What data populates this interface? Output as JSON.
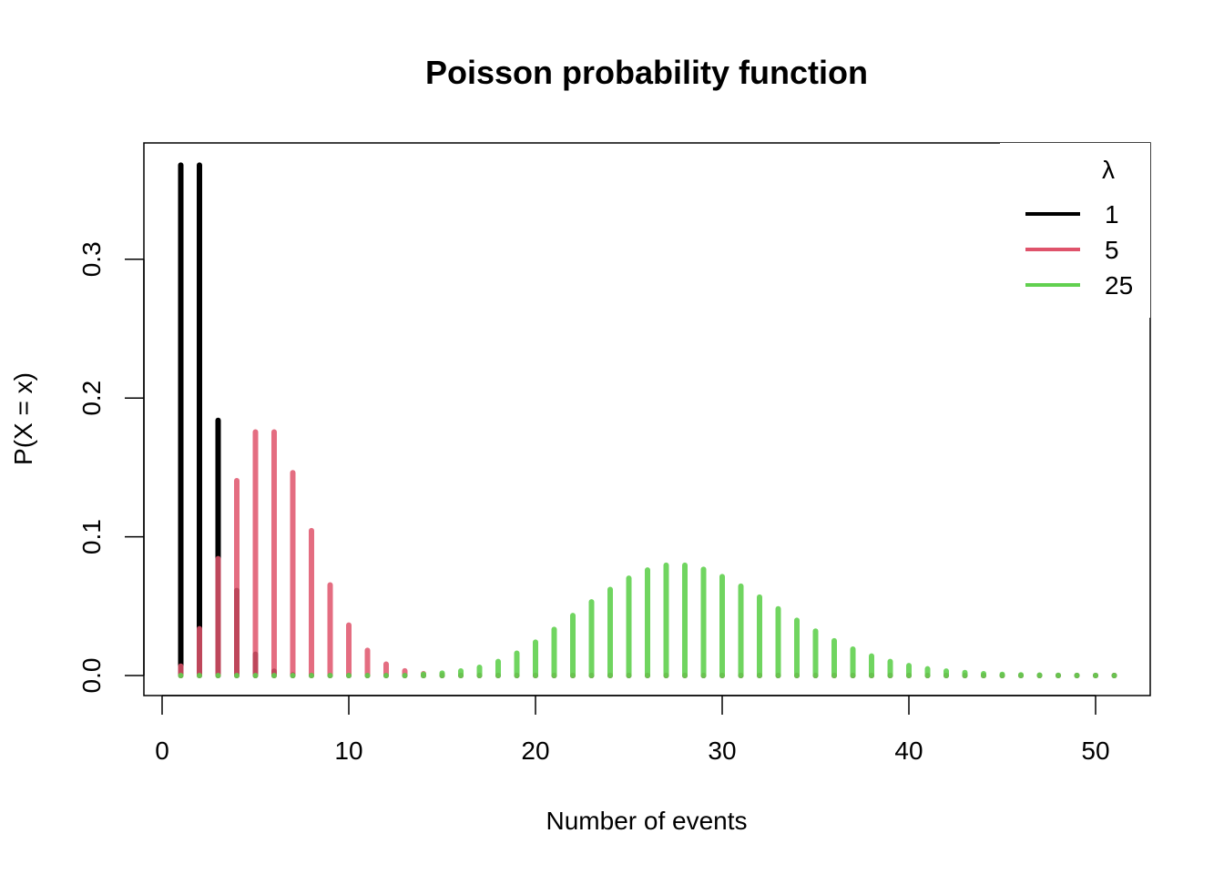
{
  "chart_data": {
    "type": "bar",
    "title": "Poisson probability function",
    "xlabel": "Number of events",
    "ylabel": "P(X = x)",
    "xlim": [
      0,
      51
    ],
    "ylim": [
      0,
      0.37
    ],
    "xticks": [
      0,
      10,
      20,
      30,
      40,
      50
    ],
    "xtick_labels": [
      "0",
      "10",
      "20",
      "30",
      "40",
      "50"
    ],
    "yticks": [
      0.0,
      0.1,
      0.2,
      0.3
    ],
    "ytick_labels": [
      "0.0",
      "0.1",
      "0.2",
      "0.3"
    ],
    "legend": {
      "title": "λ",
      "position": "top-right"
    },
    "x": [
      1,
      2,
      3,
      4,
      5,
      6,
      7,
      8,
      9,
      10,
      11,
      12,
      13,
      14,
      15,
      16,
      17,
      18,
      19,
      20,
      21,
      22,
      23,
      24,
      25,
      26,
      27,
      28,
      29,
      30,
      31,
      32,
      33,
      34,
      35,
      36,
      37,
      38,
      39,
      40,
      41,
      42,
      43,
      44,
      45,
      46,
      47,
      48,
      49,
      50,
      51
    ],
    "series": [
      {
        "name": "1",
        "color": "#000000",
        "values": [
          0.3679,
          0.3679,
          0.1839,
          0.0613,
          0.0153,
          0.0031,
          0.0005,
          0.0001,
          0,
          0,
          0,
          0,
          0,
          0,
          0,
          0,
          0,
          0,
          0,
          0,
          0,
          0,
          0,
          0,
          0,
          0,
          0,
          0,
          0,
          0,
          0,
          0,
          0,
          0,
          0,
          0,
          0,
          0,
          0,
          0,
          0,
          0,
          0,
          0,
          0,
          0,
          0,
          0,
          0,
          0,
          0
        ]
      },
      {
        "name": "5",
        "color": "#DF536B",
        "values": [
          0.0067,
          0.0337,
          0.0842,
          0.1404,
          0.1755,
          0.1755,
          0.1462,
          0.1044,
          0.0653,
          0.0363,
          0.0181,
          0.0082,
          0.0034,
          0.0013,
          0.0005,
          0.0002,
          0,
          0,
          0,
          0,
          0,
          0,
          0,
          0,
          0,
          0,
          0,
          0,
          0,
          0,
          0,
          0,
          0,
          0,
          0,
          0,
          0,
          0,
          0,
          0,
          0,
          0,
          0,
          0,
          0,
          0,
          0,
          0,
          0,
          0,
          0
        ]
      },
      {
        "name": "25",
        "color": "#61D04F",
        "values": [
          0,
          0,
          0,
          0,
          0,
          0,
          0,
          0,
          0,
          0,
          0,
          0,
          0,
          0.0009,
          0.0017,
          0.0033,
          0.0059,
          0.0101,
          0.0161,
          0.024,
          0.0332,
          0.0432,
          0.0531,
          0.062,
          0.0701,
          0.076,
          0.0795,
          0.0795,
          0.0765,
          0.0713,
          0.0644,
          0.0565,
          0.0481,
          0.0398,
          0.032,
          0.025,
          0.019,
          0.014,
          0.0101,
          0.0071,
          0.0048,
          0.0032,
          0.0021,
          0.0013,
          0.0008,
          0.0005,
          0.0003,
          0.0002,
          0.0001,
          0.0001,
          0
        ]
      }
    ]
  }
}
